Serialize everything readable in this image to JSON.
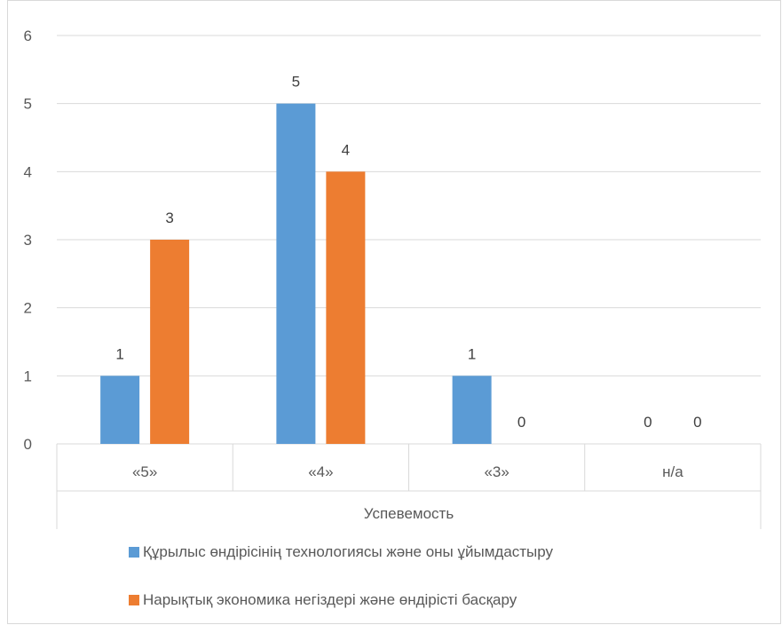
{
  "chart_data": {
    "type": "bar",
    "categories": [
      "«5»",
      "«4»",
      "«3»",
      "н/а"
    ],
    "xlabel": "Успевемость",
    "ylabel": "",
    "ylim": [
      0,
      6
    ],
    "yticks": [
      0,
      1,
      2,
      3,
      4,
      5,
      6
    ],
    "grid": true,
    "legend_position": "bottom",
    "series": [
      {
        "name": "Құрылыс өндірісінің технологиясы және оны ұйымдастыру",
        "values": [
          1,
          5,
          1,
          0
        ],
        "color": "#5B9BD5"
      },
      {
        "name": "Нарықтық экономика негіздері және өндірісті басқару",
        "values": [
          3,
          4,
          0,
          0
        ],
        "color": "#ED7D31"
      }
    ]
  }
}
